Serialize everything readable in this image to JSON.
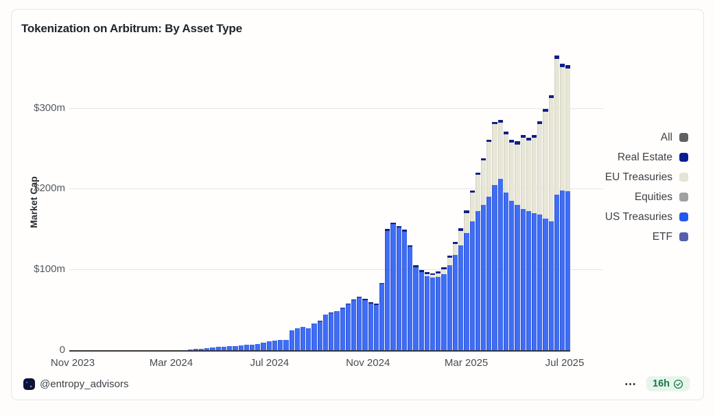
{
  "card": {
    "title": "Tokenization on Arbitrum: By Asset Type"
  },
  "chart_data": {
    "type": "bar",
    "stacked": true,
    "title": "Tokenization on Arbitrum: By Asset Type",
    "xlabel": "",
    "ylabel": "Market Cap",
    "unit": "USD millions",
    "x_range": "Nov 2023 to Jul 2025",
    "cadence": "weekly",
    "ylim": [
      0,
      365
    ],
    "grid": "horizontal",
    "legend_position": "right",
    "yticks": [
      {
        "value": 0,
        "label": "0"
      },
      {
        "value": 100,
        "label": "$100m"
      },
      {
        "value": 200,
        "label": "$200m"
      },
      {
        "value": 300,
        "label": "$300m"
      }
    ],
    "xticks": [
      "Nov 2023",
      "Mar 2024",
      "Jul 2024",
      "Nov 2024",
      "Mar 2025",
      "Jul 2025"
    ],
    "series": [
      {
        "name": "US Treasuries",
        "color": "#3f6df3",
        "values": [
          0,
          0,
          0,
          0,
          0,
          0,
          0,
          0,
          0,
          0,
          0,
          0,
          0,
          0,
          0,
          0,
          0,
          0,
          0,
          0,
          0,
          1,
          1.5,
          2,
          2.5,
          3,
          4,
          4.5,
          5,
          5.5,
          6,
          6.5,
          7,
          7.5,
          9.5,
          11,
          12,
          12.5,
          13,
          25,
          27,
          29,
          27.5,
          33,
          36,
          44,
          46,
          48,
          52,
          57,
          62,
          65,
          62,
          58,
          56,
          82,
          148,
          156,
          152,
          147,
          128,
          103,
          97,
          92,
          90,
          91,
          94,
          105,
          118,
          130,
          145,
          160,
          172,
          180,
          190,
          205,
          212,
          195,
          185,
          180,
          175,
          172,
          170,
          168,
          163,
          160,
          196,
          198,
          197
        ]
      },
      {
        "name": "EU Treasuries",
        "color": "#e7e6d7",
        "values": [
          0,
          0,
          0,
          0,
          0,
          0,
          0,
          0,
          0,
          0,
          0,
          0,
          0,
          0,
          0,
          0,
          0,
          0,
          0,
          0,
          0,
          0,
          0,
          0,
          0,
          0,
          0,
          0,
          0,
          0,
          0,
          0,
          0,
          0,
          0,
          0,
          0,
          0,
          0,
          0,
          0,
          0,
          0,
          0,
          0,
          0,
          0,
          0,
          0,
          0,
          0,
          0,
          0,
          0,
          0,
          0,
          0,
          0,
          0,
          0,
          0,
          0,
          0,
          2,
          3,
          4,
          6,
          10,
          14,
          18,
          25,
          35,
          45,
          55,
          68,
          75,
          70,
          72,
          72,
          75,
          88,
          88,
          93,
          112,
          132,
          152,
          172,
          153,
          152,
          148
        ]
      },
      {
        "name": "Real Estate",
        "color": "#101f86",
        "values": [
          0,
          0,
          0,
          0,
          0,
          0,
          0,
          0,
          0,
          0,
          0,
          0,
          0,
          0,
          0,
          0,
          0,
          0,
          0,
          0,
          0,
          0,
          0,
          0,
          0,
          0,
          0,
          0,
          0,
          0,
          0,
          0,
          0,
          0,
          0,
          0,
          0,
          0,
          0,
          0,
          0,
          0,
          0,
          0.5,
          0.5,
          0.5,
          0.5,
          0.5,
          1,
          1,
          1,
          1,
          1.5,
          1.5,
          1.5,
          1.5,
          2,
          2,
          2,
          2,
          2,
          2.5,
          2.5,
          2.5,
          2.5,
          2.5,
          2.5,
          2.5,
          2.5,
          3,
          3,
          3,
          3,
          3,
          3,
          3,
          3,
          3.5,
          3.5,
          3.5,
          3.5,
          3.5,
          3.5,
          3.5,
          4,
          4,
          4,
          4,
          4
        ]
      },
      {
        "name": "Equities",
        "color": "#9fa0a2",
        "values": []
      },
      {
        "name": "ETF",
        "color": "#565fae",
        "values": []
      }
    ]
  },
  "legend": {
    "items": [
      {
        "label": "All",
        "color": "#5f6062"
      },
      {
        "label": "Real Estate",
        "color": "#0b1d91"
      },
      {
        "label": "EU Treasuries",
        "color": "#e3e4d3"
      },
      {
        "label": "Equities",
        "color": "#9fa0a2"
      },
      {
        "label": "US Treasuries",
        "color": "#2158f0"
      },
      {
        "label": "ETF",
        "color": "#565fae"
      }
    ]
  },
  "footer": {
    "handle": "@entropy_advisors",
    "avatar_icon": "entropy-advisors-logo",
    "menu": "⋯",
    "badge": {
      "time": "16h",
      "icon": "verified-check"
    }
  },
  "colors": {
    "us_treasuries_fill": "#3f6df3",
    "us_treasuries_edge": "#2a4fd0",
    "eu_treasuries_fill": "#e7e6d7",
    "real_estate_fill": "#101f86",
    "gridline": "#e5e4e2",
    "axis_line": "#33353a",
    "badge_bg": "#e7f4ec",
    "badge_text": "#177a44",
    "card_border": "#eae3da"
  }
}
